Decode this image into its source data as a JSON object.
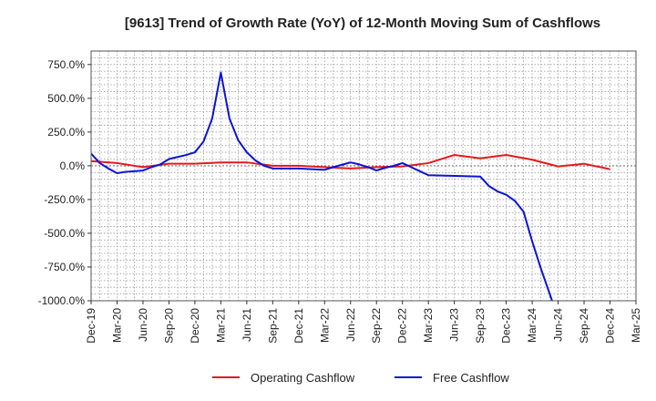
{
  "chart_data": {
    "type": "line",
    "title": "[9613]  Trend of Growth Rate (YoY) of 12-Month Moving Sum of Cashflows",
    "xlabel": "",
    "ylabel": "",
    "ylim": [
      -1000,
      850
    ],
    "yticks": [
      750,
      500,
      250,
      0,
      -250,
      -500,
      -750,
      -1000
    ],
    "ytick_labels": [
      "750.0%",
      "500.0%",
      "250.0%",
      "0.0%",
      "-250.0%",
      "-500.0%",
      "-750.0%",
      "-1000.0%"
    ],
    "xlim": [
      0,
      63
    ],
    "xticks": [
      0,
      3,
      6,
      9,
      12,
      15,
      18,
      21,
      24,
      27,
      30,
      33,
      36,
      39,
      42,
      45,
      48,
      51,
      54,
      57,
      60,
      63
    ],
    "xtick_labels": [
      "Dec-19",
      "Mar-20",
      "Jun-20",
      "Sep-20",
      "Dec-20",
      "Mar-21",
      "Jun-21",
      "Sep-21",
      "Dec-21",
      "Mar-22",
      "Jun-22",
      "Sep-22",
      "Dec-22",
      "Mar-23",
      "Jun-23",
      "Sep-23",
      "Dec-23",
      "Mar-24",
      "Jun-24",
      "Sep-24",
      "Dec-24",
      "Mar-25"
    ],
    "grid": true,
    "legend_position": "bottom",
    "series": [
      {
        "name": "Operating Cashflow",
        "color": "#e41a1c",
        "points": [
          [
            0,
            35
          ],
          [
            3,
            20
          ],
          [
            6,
            -10
          ],
          [
            9,
            15
          ],
          [
            12,
            15
          ],
          [
            15,
            25
          ],
          [
            18,
            25
          ],
          [
            21,
            0
          ],
          [
            24,
            0
          ],
          [
            27,
            -10
          ],
          [
            30,
            -20
          ],
          [
            33,
            -10
          ],
          [
            36,
            -5
          ],
          [
            39,
            20
          ],
          [
            42,
            80
          ],
          [
            45,
            55
          ],
          [
            48,
            80
          ],
          [
            51,
            45
          ],
          [
            54,
            -5
          ],
          [
            57,
            15
          ],
          [
            60,
            -25
          ]
        ]
      },
      {
        "name": "Free Cashflow",
        "color": "#0a14d6",
        "points": [
          [
            0,
            90
          ],
          [
            1,
            20
          ],
          [
            2,
            -20
          ],
          [
            3,
            -55
          ],
          [
            4,
            -45
          ],
          [
            5,
            -40
          ],
          [
            6,
            -35
          ],
          [
            7,
            -10
          ],
          [
            8,
            10
          ],
          [
            9,
            50
          ],
          [
            10,
            65
          ],
          [
            11,
            80
          ],
          [
            12,
            100
          ],
          [
            13,
            180
          ],
          [
            14,
            350
          ],
          [
            15,
            690
          ],
          [
            16,
            350
          ],
          [
            17,
            190
          ],
          [
            18,
            100
          ],
          [
            19,
            40
          ],
          [
            20,
            0
          ],
          [
            21,
            -20
          ],
          [
            24,
            -20
          ],
          [
            27,
            -30
          ],
          [
            28,
            -10
          ],
          [
            30,
            25
          ],
          [
            31,
            10
          ],
          [
            32,
            -10
          ],
          [
            33,
            -35
          ],
          [
            34,
            -15
          ],
          [
            35,
            0
          ],
          [
            36,
            20
          ],
          [
            37,
            -10
          ],
          [
            38,
            -40
          ],
          [
            39,
            -70
          ],
          [
            42,
            -75
          ],
          [
            45,
            -80
          ],
          [
            46,
            -150
          ],
          [
            47,
            -190
          ],
          [
            48,
            -215
          ],
          [
            49,
            -260
          ],
          [
            50,
            -340
          ],
          [
            51,
            -560
          ],
          [
            52,
            -760
          ],
          [
            53.3,
            -1000
          ]
        ]
      }
    ]
  }
}
